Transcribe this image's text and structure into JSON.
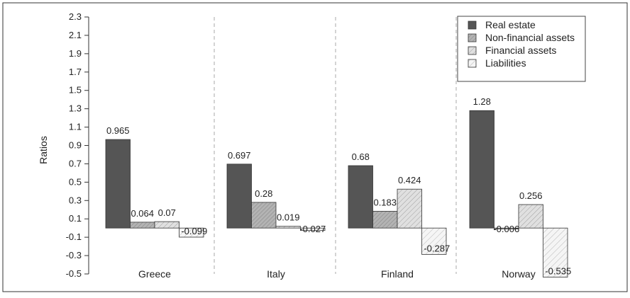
{
  "chart_data": {
    "type": "bar",
    "ylabel": "Ratios",
    "ylim": [
      -0.5,
      2.3
    ],
    "yticks": [
      "2.3",
      "2.1",
      "1.9",
      "1.7",
      "1.5",
      "1.3",
      "1.1",
      "0.9",
      "0.7",
      "0.5",
      "0.3",
      "0.1",
      "-0.1",
      "-0.3",
      "-0.5"
    ],
    "categories": [
      "Greece",
      "Italy",
      "Finland",
      "Norway"
    ],
    "legend_position": "top-right",
    "grid": false,
    "series": [
      {
        "name": "Real estate",
        "values": [
          0.965,
          0.697,
          0.68,
          1.28
        ],
        "labels": [
          "0.965",
          "0.697",
          "0.68",
          "1.28"
        ],
        "fill": "#555555",
        "pattern": "solid"
      },
      {
        "name": "Non-financial assets",
        "values": [
          0.064,
          0.28,
          0.183,
          -0.006
        ],
        "labels": [
          "0.064",
          "0.28",
          "0.183",
          "-0.006"
        ],
        "fill": "#b3b3b3",
        "pattern": "dense-hatch"
      },
      {
        "name": "Financial assets",
        "values": [
          0.07,
          0.019,
          0.424,
          0.256
        ],
        "labels": [
          "0.07",
          "0.019",
          "0.424",
          "0.256"
        ],
        "fill": "#dddddd",
        "pattern": "medium-hatch"
      },
      {
        "name": "Liabilities",
        "values": [
          -0.099,
          -0.027,
          -0.287,
          -0.535
        ],
        "labels": [
          "-0.099",
          "-0.027",
          "-0.287",
          "-0.535"
        ],
        "fill": "#f2f2f2",
        "pattern": "sparse-hatch"
      }
    ]
  }
}
